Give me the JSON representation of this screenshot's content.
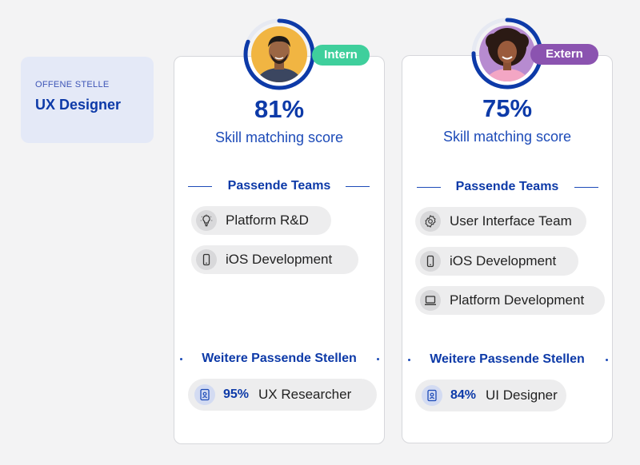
{
  "job": {
    "eyebrow": "OFFENE STELLE",
    "title": "UX Designer"
  },
  "colors": {
    "primary": "#0d3aa8",
    "intern_badge": "#3fcf9c",
    "extern_badge": "#8b53b0",
    "ring_track": "#e6e9f2"
  },
  "candidates": [
    {
      "type_label": "Intern",
      "score": "81%",
      "score_fraction": 0.81,
      "score_label": "Skill matching score",
      "teams_heading": "Passende Teams",
      "teams": [
        {
          "icon": "lightbulb-icon",
          "label": "Platform R&D"
        },
        {
          "icon": "smartphone-icon",
          "label": "iOS Development"
        }
      ],
      "positions_heading": "Weitere Passende Stellen",
      "positions": [
        {
          "icon": "id-badge-icon",
          "percent": "95%",
          "label": "UX Researcher"
        }
      ]
    },
    {
      "type_label": "Extern",
      "score": "75%",
      "score_fraction": 0.75,
      "score_label": "Skill matching score",
      "teams_heading": "Passende Teams",
      "teams": [
        {
          "icon": "gear-badge-icon",
          "label": "User Interface Team"
        },
        {
          "icon": "smartphone-icon",
          "label": "iOS Development"
        },
        {
          "icon": "laptop-icon",
          "label": "Platform Development"
        }
      ],
      "positions_heading": "Weitere Passende Stellen",
      "positions": [
        {
          "icon": "id-badge-icon",
          "percent": "84%",
          "label": "UI Designer"
        }
      ]
    }
  ]
}
